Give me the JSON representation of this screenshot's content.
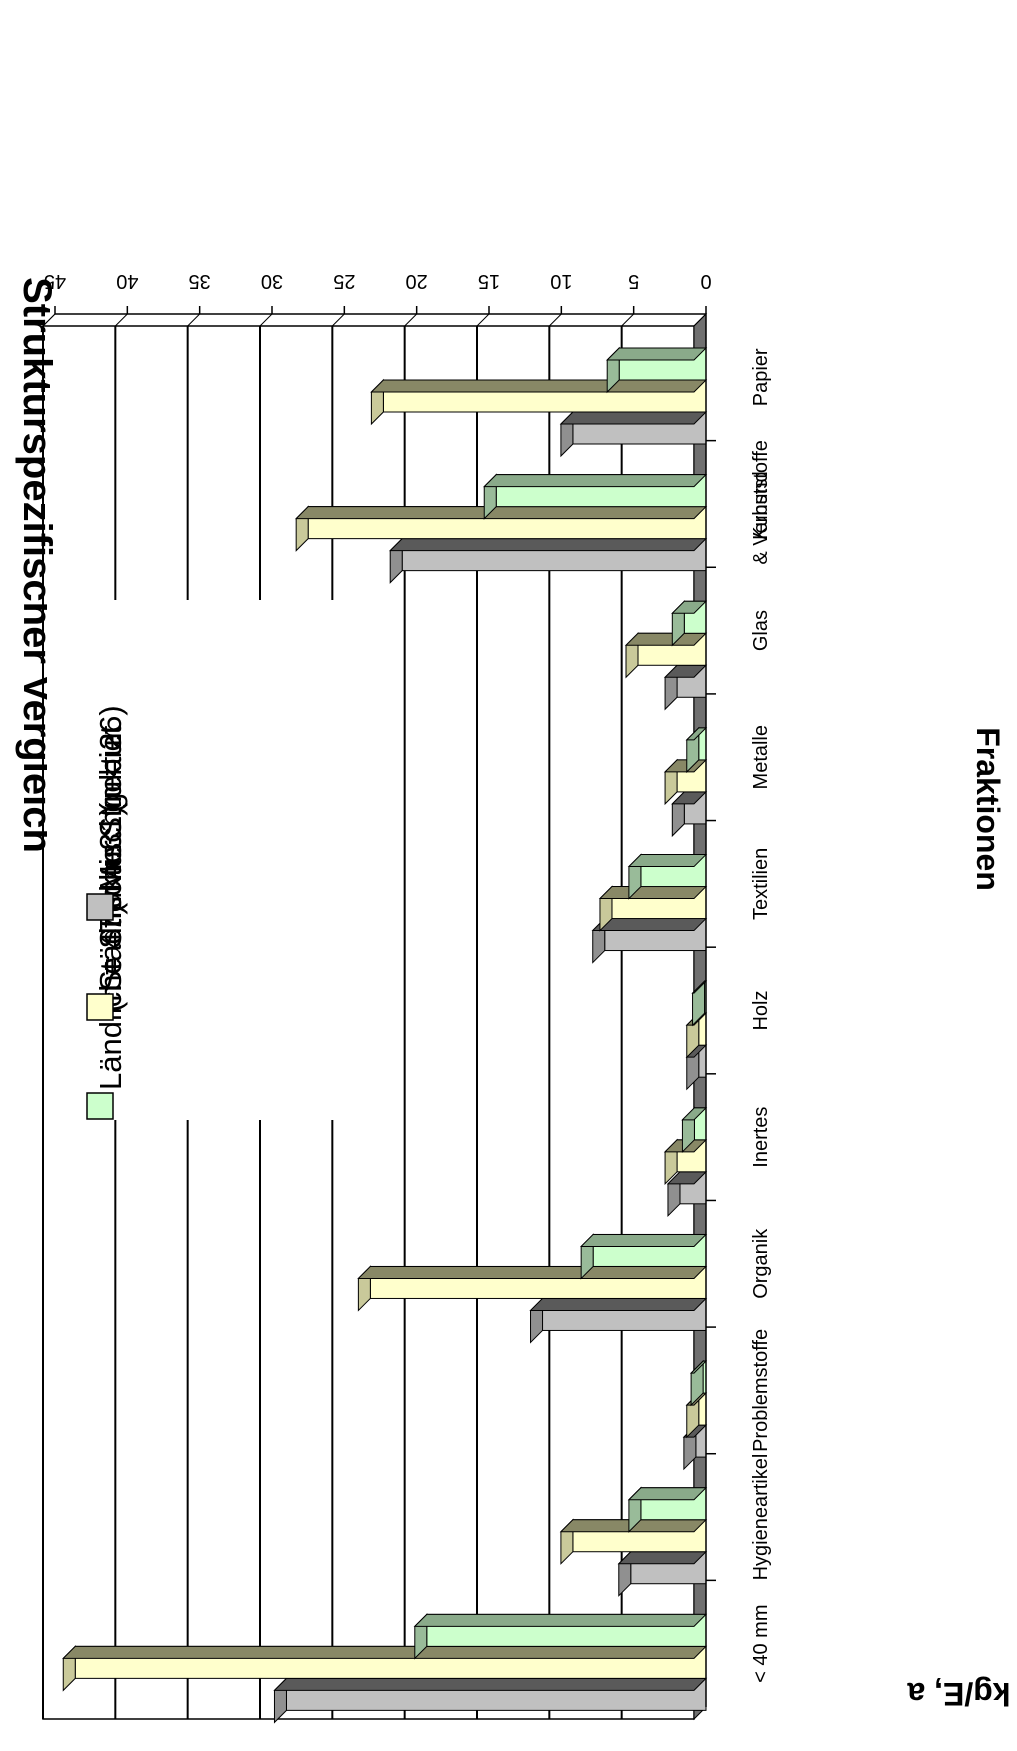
{
  "chart_data": {
    "type": "bar",
    "title": "Strukturspezifischer Vergleich",
    "xlabel": "Fraktionen",
    "ylabel": "kg/E, a",
    "ylim": [
      0,
      45
    ],
    "yticks": [
      "0",
      "5",
      "10",
      "15",
      "20",
      "25",
      "30",
      "35",
      "40",
      "45"
    ],
    "categories": [
      [
        "Papier"
      ],
      [
        "Kunststoffe",
        "& Verbund"
      ],
      [
        "Glas"
      ],
      [
        "Metalle"
      ],
      [
        "Textilien"
      ],
      [
        "Holz"
      ],
      [
        "Inertes"
      ],
      [
        "Organik"
      ],
      [
        "Problemstoffe"
      ],
      [
        "Hygieneartikel"
      ],
      [
        "< 40 mm"
      ]
    ],
    "series": [
      {
        "name": [
          "Ländliche Struktur",
          "(n = 47)"
        ],
        "values": [
          6.0,
          14.5,
          1.5,
          0.5,
          4.5,
          0.1,
          0.8,
          7.8,
          0.2,
          4.5,
          19.3
        ]
      },
      {
        "name": [
          "Städtische Struktur",
          "(n = 31)"
        ],
        "values": [
          22.3,
          27.5,
          4.7,
          2.0,
          6.5,
          0.5,
          2.0,
          23.2,
          0.5,
          9.2,
          43.6
        ]
      },
      {
        "name": [
          "Mischgebiet",
          "(n = 26)"
        ],
        "values": [
          9.2,
          21.0,
          2.0,
          1.5,
          7.0,
          0.5,
          1.8,
          11.3,
          0.7,
          5.2,
          29.0
        ]
      }
    ],
    "colors": {
      "series_face": [
        "#ccffcc",
        "#ffffcc",
        "#c0c0c0"
      ],
      "series_top": [
        "#99bb99",
        "#c9c99a",
        "#909090"
      ],
      "series_side": [
        "#8aaa8a",
        "#888866",
        "#5a5a5a"
      ],
      "floor": "#707070",
      "gridline": "#000000"
    },
    "grid": true,
    "legend_position": "top-right",
    "orientation": "page rotated 90° clockwise"
  }
}
